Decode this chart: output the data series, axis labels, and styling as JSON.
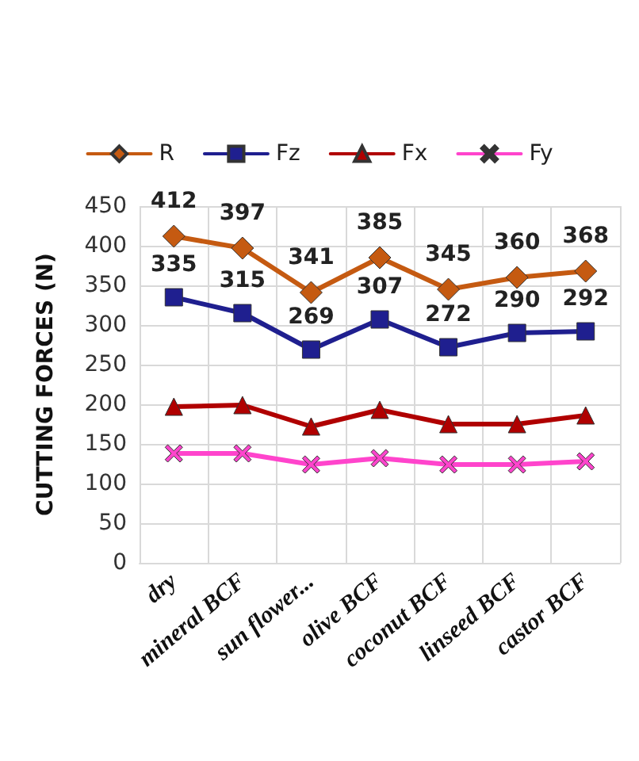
{
  "chart_data": {
    "type": "line",
    "ylabel": "CUTTING FORCES (N)",
    "categories": [
      "dry",
      "mineral BCF",
      "sun flower...",
      "olive BCF",
      "coconut BCF",
      "linseed BCF",
      "castor BCF"
    ],
    "series": [
      {
        "name": "R",
        "color": "#c55a11",
        "marker": "diamond",
        "values": [
          412,
          397,
          341,
          385,
          345,
          360,
          368
        ],
        "value_labels": [
          "412",
          "397",
          "341",
          "385",
          "345",
          "360",
          "368"
        ]
      },
      {
        "name": "Fz",
        "color": "#1f1f8f",
        "marker": "square",
        "values": [
          335,
          315,
          269,
          307,
          272,
          290,
          292
        ],
        "value_labels": [
          "335",
          "315",
          "269",
          "307",
          "272",
          "290",
          "292"
        ]
      },
      {
        "name": "Fx",
        "color": "#b00000",
        "marker": "triangle",
        "values": [
          197,
          199,
          172,
          193,
          175,
          175,
          186
        ]
      },
      {
        "name": "Fy",
        "color": "#ff44cc",
        "marker": "cross",
        "values": [
          138,
          138,
          124,
          132,
          124,
          124,
          128
        ]
      }
    ],
    "ylim": [
      0,
      450
    ],
    "yticks": [
      0,
      50,
      100,
      150,
      200,
      250,
      300,
      350,
      400,
      450
    ],
    "grid": true,
    "legend": "top"
  }
}
